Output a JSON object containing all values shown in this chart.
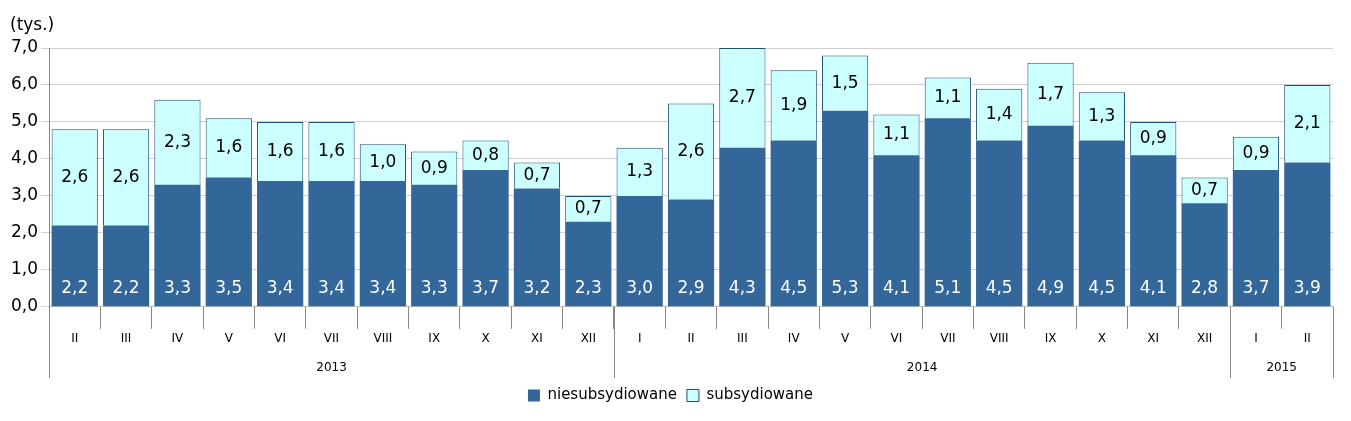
{
  "chart_data": {
    "type": "bar",
    "stacked": true,
    "ylabel": "(tys.)",
    "categories": [
      "II",
      "III",
      "IV",
      "V",
      "VI",
      "VII",
      "VIII",
      "IX",
      "X",
      "XI",
      "XII",
      "I",
      "II",
      "III",
      "IV",
      "V",
      "VI",
      "VII",
      "VIII",
      "IX",
      "X",
      "XI",
      "XII",
      "I",
      "II"
    ],
    "series": [
      {
        "name": "niesubsydiowane",
        "color": "#336699",
        "values": [
          2.2,
          2.2,
          3.3,
          3.5,
          3.4,
          3.4,
          3.4,
          3.3,
          3.7,
          3.2,
          2.3,
          3.0,
          2.9,
          4.3,
          4.5,
          5.3,
          4.1,
          5.1,
          4.5,
          4.9,
          4.5,
          4.1,
          2.8,
          3.7,
          3.9
        ],
        "value_labels": [
          "2,2",
          "2,2",
          "3,3",
          "3,5",
          "3,4",
          "3,4",
          "3,4",
          "3,3",
          "3,7",
          "3,2",
          "2,3",
          "3,0",
          "2,9",
          "4,3",
          "4,5",
          "5,3",
          "4,1",
          "5,1",
          "4,5",
          "4,9",
          "4,5",
          "4,1",
          "2,8",
          "3,7",
          "3,9"
        ]
      },
      {
        "name": "subsydiowane",
        "color": "#ccffff",
        "values": [
          2.6,
          2.6,
          2.3,
          1.6,
          1.6,
          1.6,
          1.0,
          0.9,
          0.8,
          0.7,
          0.7,
          1.3,
          2.6,
          2.7,
          1.9,
          1.5,
          1.1,
          1.1,
          1.4,
          1.7,
          1.3,
          0.9,
          0.7,
          0.9,
          2.1
        ],
        "value_labels": [
          "2,6",
          "2,6",
          "2,3",
          "1,6",
          "1,6",
          "1,6",
          "1,0",
          "0,9",
          "0,8",
          "0,7",
          "0,7",
          "1,3",
          "2,6",
          "2,7",
          "1,9",
          "1,5",
          "1,1",
          "1,1",
          "1,4",
          "1,7",
          "1,3",
          "0,9",
          "0,7",
          "0,9",
          "2,1"
        ]
      }
    ],
    "annotations": [
      "2013",
      "2014",
      "2015"
    ],
    "ylim": [
      0,
      7
    ],
    "yticks": [
      {
        "value": 0,
        "label": "0,0"
      },
      {
        "value": 1,
        "label": "1,0"
      },
      {
        "value": 2,
        "label": "2,0"
      },
      {
        "value": 3,
        "label": "3,0"
      },
      {
        "value": 4,
        "label": "4,0"
      },
      {
        "value": 5,
        "label": "5,0"
      },
      {
        "value": 6,
        "label": "6,0"
      },
      {
        "value": 7,
        "label": "7,0"
      }
    ],
    "grid": "y",
    "legend": "bottom"
  }
}
